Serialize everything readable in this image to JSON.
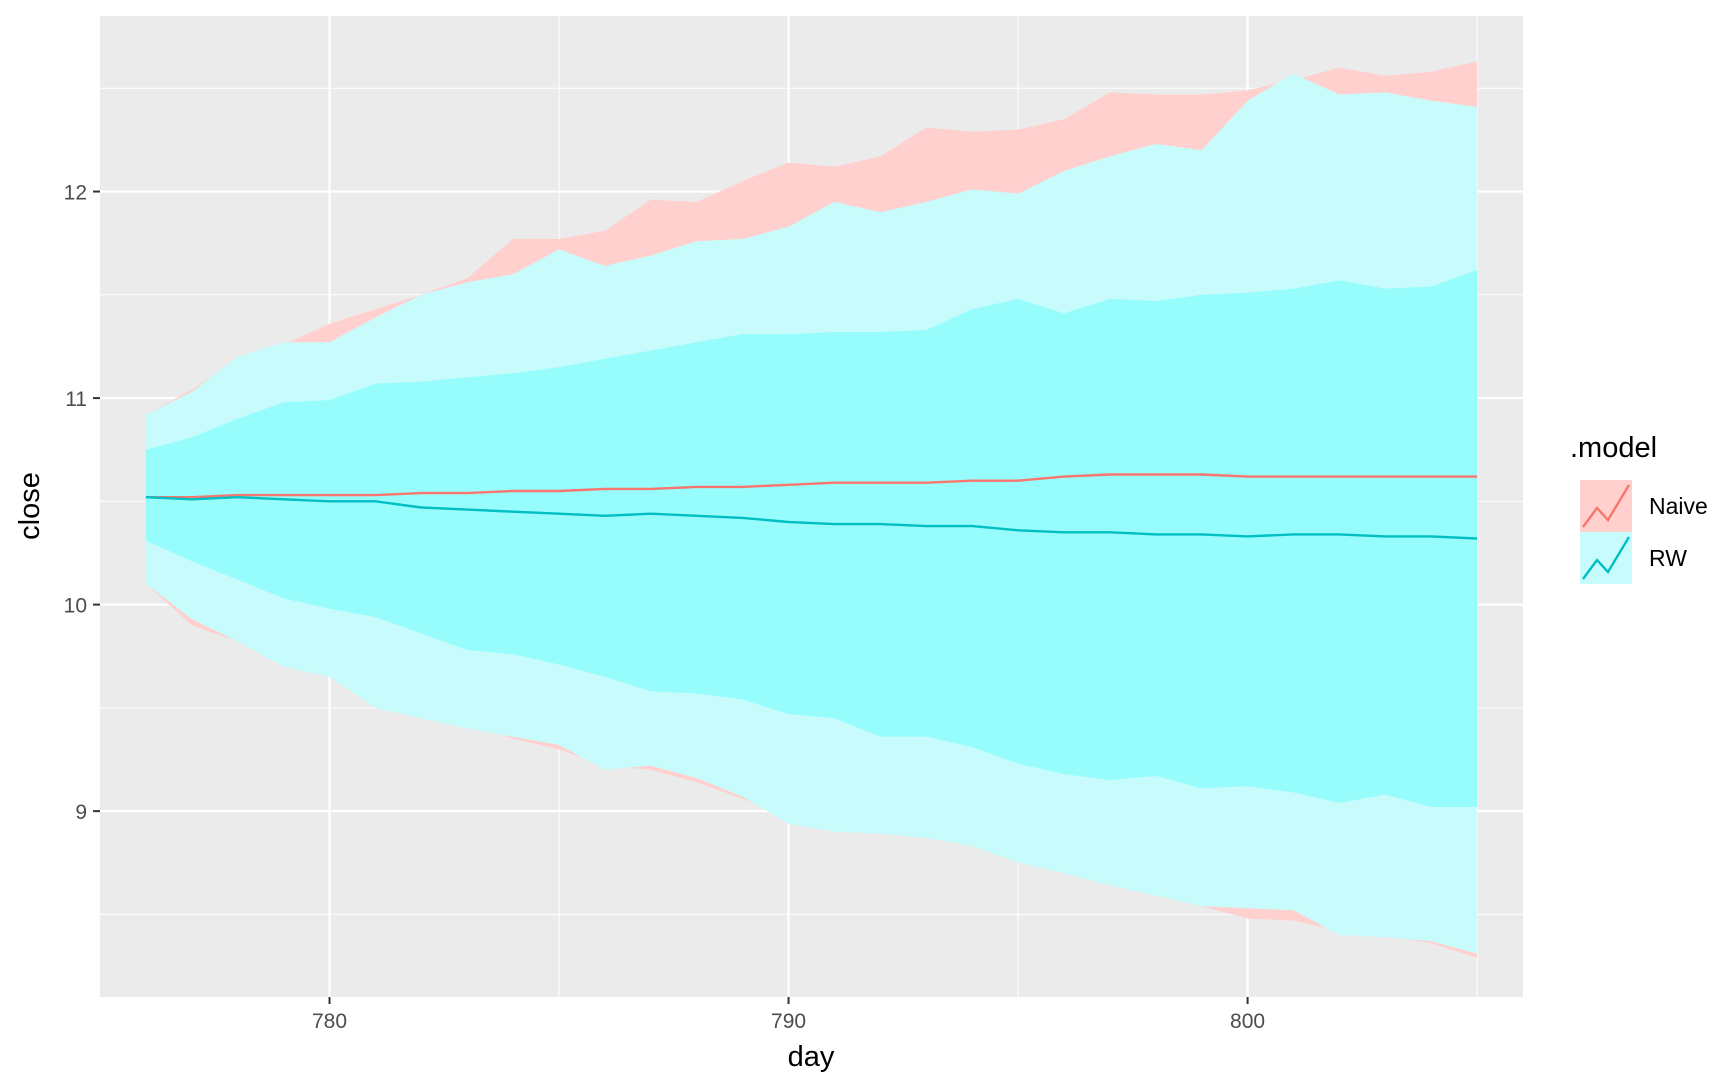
{
  "chart_data": {
    "type": "line",
    "title": "",
    "xlabel": "day",
    "ylabel": "close",
    "xlim": [
      775,
      806
    ],
    "ylim": [
      8.1,
      12.85
    ],
    "x_ticks": [
      780,
      790,
      800
    ],
    "y_ticks": [
      9,
      10,
      11,
      12
    ],
    "x_tick_labels": [
      "780",
      "790",
      "800"
    ],
    "y_tick_labels": [
      "9",
      "10",
      "11",
      "12"
    ],
    "grid": true,
    "legend": {
      "title": ".model",
      "position": "right"
    },
    "x": [
      776,
      777,
      778,
      779,
      780,
      781,
      782,
      783,
      784,
      785,
      786,
      787,
      788,
      789,
      790,
      791,
      792,
      793,
      794,
      795,
      796,
      797,
      798,
      799,
      800,
      801,
      802,
      803,
      804,
      805
    ],
    "series": [
      {
        "name": "Naive",
        "color": "#F8766D",
        "fill": "#FFD0CD",
        "mean": [
          10.52,
          10.52,
          10.53,
          10.53,
          10.53,
          10.53,
          10.54,
          10.54,
          10.55,
          10.55,
          10.56,
          10.56,
          10.57,
          10.57,
          10.58,
          10.59,
          10.59,
          10.59,
          10.6,
          10.6,
          10.62,
          10.63,
          10.63,
          10.63,
          10.62,
          10.62,
          10.62,
          10.62,
          10.62,
          10.62
        ],
        "lower_95": [
          10.1,
          9.9,
          9.82,
          9.72,
          9.65,
          9.55,
          9.48,
          9.43,
          9.35,
          9.3,
          9.22,
          9.2,
          9.14,
          9.06,
          8.97,
          8.92,
          8.9,
          8.87,
          8.83,
          8.75,
          8.7,
          8.64,
          8.59,
          8.54,
          8.48,
          8.47,
          8.42,
          8.4,
          8.36,
          8.29
        ],
        "upper_95": [
          10.92,
          11.04,
          11.19,
          11.26,
          11.36,
          11.43,
          11.5,
          11.58,
          11.77,
          11.77,
          11.81,
          11.96,
          11.95,
          12.05,
          12.14,
          12.12,
          12.17,
          12.31,
          12.29,
          12.3,
          12.35,
          12.48,
          12.47,
          12.47,
          12.49,
          12.54,
          12.6,
          12.56,
          12.58,
          12.63
        ]
      },
      {
        "name": "RW",
        "color": "#00BFC4",
        "fill": "#C8FCFC",
        "fill_inner": "#97FCFC",
        "mean": [
          10.52,
          10.51,
          10.52,
          10.51,
          10.5,
          10.5,
          10.47,
          10.46,
          10.45,
          10.44,
          10.43,
          10.44,
          10.43,
          10.42,
          10.4,
          10.39,
          10.39,
          10.38,
          10.38,
          10.36,
          10.35,
          10.35,
          10.34,
          10.34,
          10.33,
          10.34,
          10.34,
          10.33,
          10.33,
          10.32
        ],
        "lower_80": [
          10.31,
          10.21,
          10.12,
          10.03,
          9.98,
          9.94,
          9.86,
          9.78,
          9.76,
          9.71,
          9.65,
          9.58,
          9.57,
          9.54,
          9.47,
          9.45,
          9.36,
          9.36,
          9.31,
          9.23,
          9.18,
          9.15,
          9.17,
          9.11,
          9.12,
          9.09,
          9.04,
          9.08,
          9.02,
          9.02
        ],
        "upper_80": [
          10.75,
          10.81,
          10.9,
          10.98,
          10.99,
          11.07,
          11.08,
          11.1,
          11.12,
          11.15,
          11.19,
          11.23,
          11.27,
          11.31,
          11.31,
          11.32,
          11.32,
          11.33,
          11.43,
          11.48,
          11.41,
          11.48,
          11.47,
          11.5,
          11.51,
          11.53,
          11.57,
          11.53,
          11.54,
          11.62
        ],
        "lower_95": [
          10.1,
          9.93,
          9.82,
          9.7,
          9.65,
          9.5,
          9.45,
          9.4,
          9.36,
          9.32,
          9.2,
          9.22,
          9.16,
          9.07,
          8.94,
          8.9,
          8.89,
          8.87,
          8.83,
          8.75,
          8.7,
          8.64,
          8.59,
          8.54,
          8.53,
          8.52,
          8.4,
          8.39,
          8.37,
          8.31
        ],
        "upper_95": [
          10.92,
          11.03,
          11.2,
          11.27,
          11.27,
          11.39,
          11.5,
          11.56,
          11.6,
          11.72,
          11.64,
          11.69,
          11.76,
          11.77,
          11.83,
          11.95,
          11.9,
          11.95,
          12.01,
          11.99,
          12.1,
          12.17,
          12.23,
          12.2,
          12.44,
          12.57,
          12.47,
          12.48,
          12.44,
          12.41
        ]
      }
    ]
  }
}
